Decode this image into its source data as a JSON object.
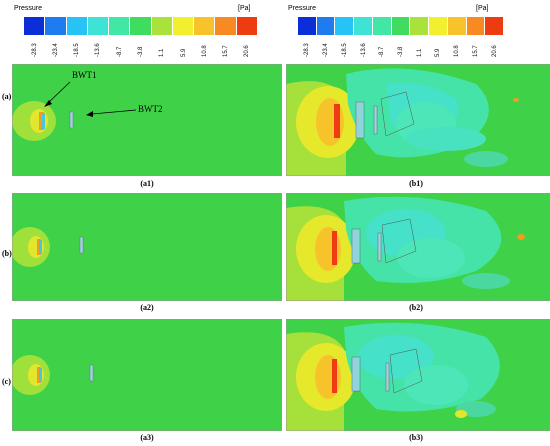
{
  "legend": {
    "title": "Pressure",
    "unit": "[Pa]",
    "ticks": [
      "-28.3",
      "-23.4",
      "-18.5",
      "-13.6",
      "-8.7",
      "-3.8",
      "1.1",
      "5.9",
      "10.8",
      "15.7",
      "20.6"
    ],
    "colors": [
      "#0a2fd8",
      "#1f7cf0",
      "#27c3f5",
      "#3fe3d5",
      "#42e6a5",
      "#3fdc60",
      "#a8e23a",
      "#f2ef2e",
      "#f8c22a",
      "#f78a20",
      "#ee3c12"
    ]
  },
  "rows": [
    {
      "label": "(a)"
    },
    {
      "label": "(b)"
    },
    {
      "label": "(c)"
    }
  ],
  "panels": {
    "a1": "(a1)",
    "b1": "(b1)",
    "a2": "(a2)",
    "b2": "(b2)",
    "a3": "(a3)",
    "b3": "(b3)"
  },
  "annotations": {
    "bwt1": "BWT1",
    "bwt2": "BWT2"
  },
  "colors": {
    "field_green": "#3fd147",
    "high_yellow": "#e8ea2c",
    "high_orange": "#f59a22",
    "low_cyan": "#46e3b2",
    "red": "#e8441c"
  }
}
